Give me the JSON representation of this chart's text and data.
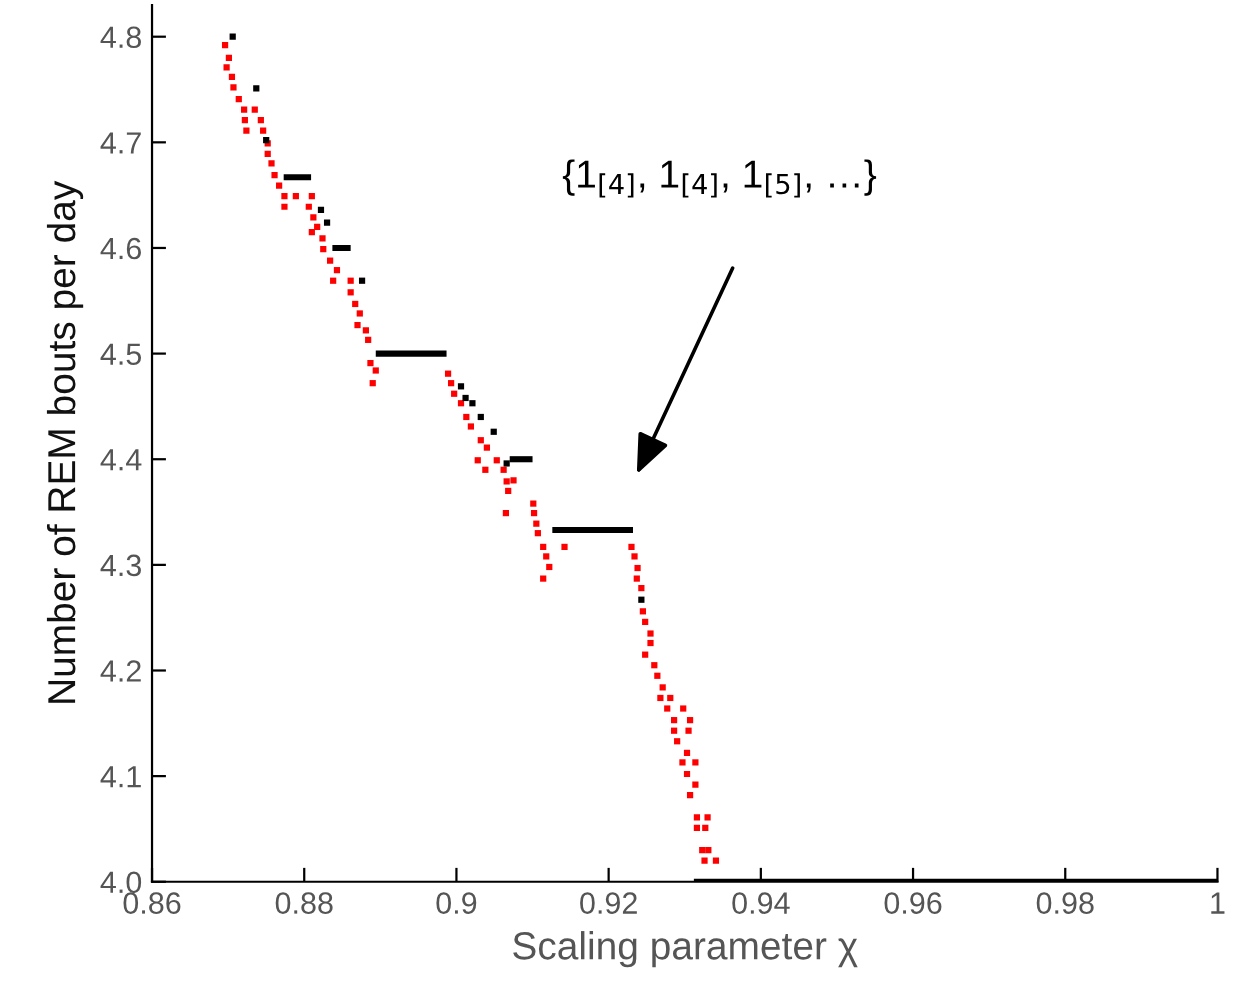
{
  "chart_data": {
    "type": "scatter",
    "xlabel": "Scaling parameter χ",
    "ylabel": "Number of REM bouts per day",
    "xlim": [
      0.86,
      1
    ],
    "xticks": [
      0.86,
      0.88,
      0.9,
      0.92,
      0.94,
      0.96,
      0.98,
      1
    ],
    "ylim": [
      4.0,
      4.83
    ],
    "yticks": [
      {
        "value": 4.0,
        "label": "4.0"
      },
      4.1,
      4.2,
      4.3,
      4.4,
      4.5,
      4.6,
      4.7,
      4.8
    ],
    "grid": false,
    "legend": false,
    "marker": "none",
    "annotations": [
      "{1$_{[4]}$, 1$_{[4]}$, 1$_{[5]}$, …}"
    ],
    "series": [
      {
        "color": "#ff0000",
        "marker": "square",
        "x": [
          0.8696,
          0.8701,
          0.8698,
          0.8705,
          0.8707,
          0.8714,
          0.8721,
          0.8735,
          0.8722,
          0.8743,
          0.8724,
          0.8746,
          0.8752,
          0.8752,
          0.8757,
          0.8761,
          0.8767,
          0.8774,
          0.8789,
          0.881,
          0.8774,
          0.8806,
          0.8812,
          0.8817,
          0.881,
          0.8824,
          0.8825,
          0.8834,
          0.8843,
          0.8838,
          0.8861,
          0.8861,
          0.8867,
          0.8873,
          0.887,
          0.8881,
          0.8884,
          0.8887,
          0.8894,
          0.889,
          0.8989,
          0.8993,
          0.8997,
          0.9006,
          0.9013,
          0.9019,
          0.9032,
          0.904,
          0.9028,
          0.9053,
          0.9038,
          0.9062,
          0.9066,
          0.9068,
          0.9075,
          0.9065,
          0.9101,
          0.9102,
          0.9105,
          0.9107,
          0.9114,
          0.9118,
          0.9122,
          0.9114,
          0.9142,
          0.923,
          0.9234,
          0.9238,
          0.9237,
          0.9243,
          0.9245,
          0.9248,
          0.9255,
          0.9255,
          0.9248,
          0.926,
          0.9264,
          0.9271,
          0.9268,
          0.9281,
          0.9277,
          0.9298,
          0.9286,
          0.9307,
          0.9286,
          0.9305,
          0.929,
          0.9303,
          0.9297,
          0.9314,
          0.9303,
          0.9314,
          0.9307,
          0.9316,
          0.933,
          0.9316,
          0.9327,
          0.9323,
          0.9331,
          0.9326,
          0.9341
        ],
        "values": [
          4.792,
          4.78,
          4.771,
          4.762,
          4.752,
          4.741,
          4.731,
          4.731,
          4.721,
          4.721,
          4.711,
          4.711,
          4.699,
          4.689,
          4.68,
          4.669,
          4.659,
          4.649,
          4.649,
          4.649,
          4.639,
          4.639,
          4.629,
          4.62,
          4.615,
          4.609,
          4.599,
          4.588,
          4.579,
          4.569,
          4.569,
          4.558,
          4.547,
          4.538,
          4.527,
          4.522,
          4.513,
          4.491,
          4.484,
          4.472,
          4.481,
          4.472,
          4.462,
          4.453,
          4.44,
          4.431,
          4.418,
          4.411,
          4.399,
          4.399,
          4.39,
          4.39,
          4.379,
          4.37,
          4.38,
          4.349,
          4.358,
          4.349,
          4.339,
          4.33,
          4.317,
          4.308,
          4.298,
          4.287,
          4.317,
          4.317,
          4.308,
          4.297,
          4.287,
          4.278,
          4.256,
          4.246,
          4.235,
          4.226,
          4.215,
          4.205,
          4.195,
          4.184,
          4.174,
          4.174,
          4.164,
          4.164,
          4.153,
          4.153,
          4.143,
          4.143,
          4.133,
          4.122,
          4.113,
          4.113,
          4.102,
          4.092,
          4.082,
          4.061,
          4.061,
          4.051,
          4.051,
          4.03,
          4.03,
          4.02,
          4.02
        ]
      },
      {
        "color": "#000000",
        "marker": "square",
        "x": [
          0.8706,
          0.8737,
          0.875,
          0.8822,
          0.883,
          0.8876,
          0.9006,
          0.9012,
          0.9021,
          0.9032,
          0.9049,
          0.9066,
          0.9243
        ],
        "values": [
          4.8,
          4.751,
          4.702,
          4.636,
          4.624,
          4.569,
          4.469,
          4.458,
          4.453,
          4.44,
          4.426,
          4.396,
          4.267
        ]
      },
      {
        "type": "line",
        "color": "#000000",
        "x": [
          0.8773,
          0.8809
        ],
        "values": [
          4.667,
          4.667
        ]
      },
      {
        "type": "line",
        "color": "#000000",
        "x": [
          0.8837,
          0.8861
        ],
        "values": [
          4.6,
          4.6
        ]
      },
      {
        "type": "line",
        "color": "#000000",
        "x": [
          0.8894,
          0.8987
        ],
        "values": [
          4.5,
          4.5
        ]
      },
      {
        "type": "line",
        "color": "#000000",
        "x": [
          0.907,
          0.91
        ],
        "values": [
          4.4,
          4.4
        ]
      },
      {
        "type": "line",
        "color": "#000000",
        "x": [
          0.9126,
          0.9232
        ],
        "values": [
          4.333,
          4.333
        ]
      },
      {
        "type": "line",
        "color": "#000000",
        "x": [
          0.9312,
          1.0
        ],
        "values": [
          4.0,
          4.0
        ]
      }
    ]
  }
}
